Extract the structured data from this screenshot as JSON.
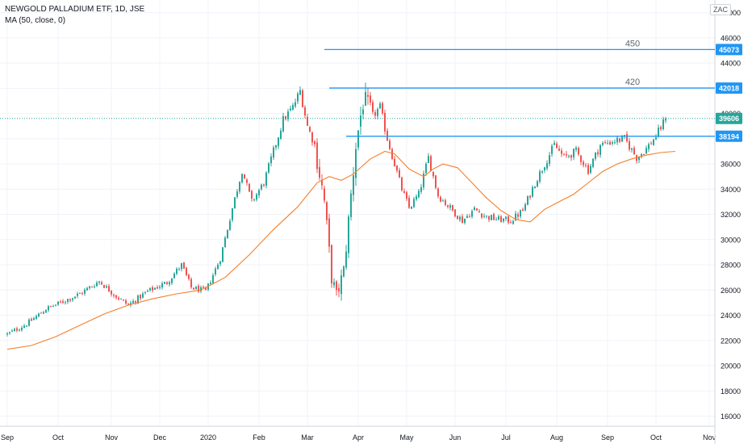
{
  "header": {
    "symbol_line": "NEWGOLD PALLADIUM ETF, 1D, JSE",
    "indicator_line": "MA (50, close, 0)",
    "currency": "ZAC"
  },
  "chart_data": {
    "type": "candlestick",
    "ylim": [
      15200,
      49000
    ],
    "y_ticks": [
      16000,
      18000,
      20000,
      22000,
      24000,
      26000,
      28000,
      30000,
      32000,
      34000,
      36000,
      38000,
      40000,
      42000,
      44000,
      46000,
      48000
    ],
    "x_ticks": [
      {
        "label": "Sep",
        "day": 0
      },
      {
        "label": "Oct",
        "day": 21
      },
      {
        "label": "Nov",
        "day": 43
      },
      {
        "label": "Dec",
        "day": 63
      },
      {
        "label": "2020",
        "day": 83
      },
      {
        "label": "Feb",
        "day": 104
      },
      {
        "label": "Mar",
        "day": 124
      },
      {
        "label": "Apr",
        "day": 145
      },
      {
        "label": "May",
        "day": 165
      },
      {
        "label": "Jun",
        "day": 185
      },
      {
        "label": "Jul",
        "day": 206
      },
      {
        "label": "Aug",
        "day": 227
      },
      {
        "label": "Sep",
        "day": 248
      },
      {
        "label": "Oct",
        "day": 268
      },
      {
        "label": "Nov",
        "day": 290
      }
    ],
    "price_anchors": [
      [
        0,
        22500
      ],
      [
        8,
        23300
      ],
      [
        16,
        24500
      ],
      [
        22,
        25000
      ],
      [
        30,
        25700
      ],
      [
        38,
        26700
      ],
      [
        45,
        25500
      ],
      [
        50,
        24800
      ],
      [
        58,
        25900
      ],
      [
        66,
        26600
      ],
      [
        72,
        28000
      ],
      [
        76,
        26200
      ],
      [
        82,
        25900
      ],
      [
        88,
        28500
      ],
      [
        93,
        32500
      ],
      [
        97,
        35500
      ],
      [
        101,
        33000
      ],
      [
        106,
        34500
      ],
      [
        110,
        37000
      ],
      [
        114,
        39500
      ],
      [
        118,
        40500
      ],
      [
        121,
        41800
      ],
      [
        124,
        39000
      ],
      [
        127,
        37500
      ],
      [
        131,
        33000
      ],
      [
        134,
        27000
      ],
      [
        136,
        25500
      ],
      [
        139,
        27500
      ],
      [
        141,
        31500
      ],
      [
        144,
        37500
      ],
      [
        147,
        41000
      ],
      [
        151,
        39800
      ],
      [
        154,
        40500
      ],
      [
        157,
        38000
      ],
      [
        160,
        36000
      ],
      [
        163,
        34000
      ],
      [
        166,
        32500
      ],
      [
        170,
        33600
      ],
      [
        174,
        36500
      ],
      [
        178,
        33500
      ],
      [
        183,
        32500
      ],
      [
        188,
        31500
      ],
      [
        193,
        32400
      ],
      [
        198,
        31800
      ],
      [
        203,
        31600
      ],
      [
        208,
        31500
      ],
      [
        213,
        32300
      ],
      [
        218,
        34500
      ],
      [
        222,
        36000
      ],
      [
        226,
        37500
      ],
      [
        230,
        36500
      ],
      [
        235,
        37000
      ],
      [
        240,
        35500
      ],
      [
        245,
        37500
      ],
      [
        250,
        37800
      ],
      [
        255,
        38000
      ],
      [
        260,
        36500
      ],
      [
        264,
        37200
      ],
      [
        268,
        38200
      ],
      [
        272,
        39606
      ]
    ],
    "series": [
      {
        "name": "MA (50, close, 0)",
        "color": "#f57f2a",
        "points": [
          [
            0,
            21300
          ],
          [
            10,
            21600
          ],
          [
            20,
            22300
          ],
          [
            30,
            23200
          ],
          [
            40,
            24100
          ],
          [
            50,
            24800
          ],
          [
            60,
            25300
          ],
          [
            70,
            25700
          ],
          [
            80,
            26000
          ],
          [
            90,
            27000
          ],
          [
            100,
            28800
          ],
          [
            110,
            30800
          ],
          [
            120,
            32600
          ],
          [
            128,
            34500
          ],
          [
            133,
            35000
          ],
          [
            138,
            34700
          ],
          [
            143,
            35200
          ],
          [
            150,
            36400
          ],
          [
            156,
            37000
          ],
          [
            160,
            36800
          ],
          [
            166,
            35600
          ],
          [
            172,
            35000
          ],
          [
            176,
            35600
          ],
          [
            180,
            36000
          ],
          [
            186,
            35700
          ],
          [
            192,
            34500
          ],
          [
            198,
            33300
          ],
          [
            204,
            32300
          ],
          [
            210,
            31600
          ],
          [
            216,
            31400
          ],
          [
            222,
            32400
          ],
          [
            228,
            33000
          ],
          [
            234,
            33600
          ],
          [
            240,
            34500
          ],
          [
            246,
            35400
          ],
          [
            252,
            36000
          ],
          [
            258,
            36400
          ],
          [
            264,
            36700
          ],
          [
            270,
            36900
          ],
          [
            276,
            37000
          ]
        ]
      }
    ],
    "horizontal_lines": [
      {
        "id": "h450",
        "value": 45073,
        "start_day": 131,
        "label": "450",
        "tag": "45073",
        "color": "#2196f3"
      },
      {
        "id": "h420",
        "value": 42018,
        "start_day": 133,
        "label": "420",
        "tag": "42018",
        "color": "#2196f3"
      },
      {
        "id": "h382",
        "value": 38194,
        "start_day": 140,
        "label": "",
        "tag": "38194",
        "color": "#2196f3"
      }
    ],
    "last_price": {
      "value": 39606,
      "tag": "39606",
      "color": "#26a69a"
    },
    "colors": {
      "up": "#26a69a",
      "down": "#ef5350",
      "grid": "#f0f3fa",
      "axis_text": "#131722"
    },
    "grid": true
  }
}
